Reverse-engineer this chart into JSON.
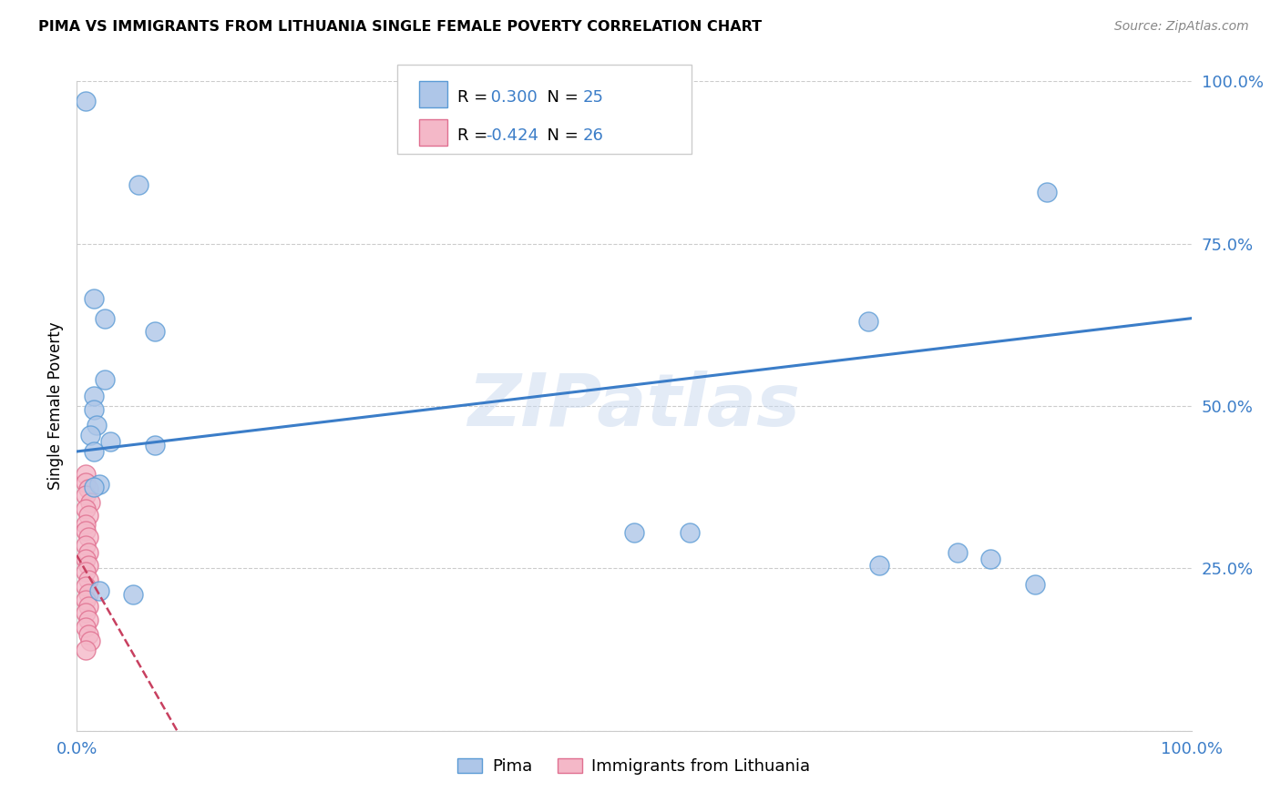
{
  "title": "PIMA VS IMMIGRANTS FROM LITHUANIA SINGLE FEMALE POVERTY CORRELATION CHART",
  "source": "Source: ZipAtlas.com",
  "ylabel": "Single Female Poverty",
  "watermark": "ZIPatlas",
  "xlim": [
    0.0,
    1.0
  ],
  "ylim": [
    0.0,
    1.0
  ],
  "xtick_positions": [
    0.0,
    0.2,
    0.4,
    0.6,
    0.8,
    1.0
  ],
  "xtick_labels": [
    "0.0%",
    "",
    "",
    "",
    "",
    "100.0%"
  ],
  "ytick_positions": [
    0.0,
    0.25,
    0.5,
    0.75,
    1.0
  ],
  "ytick_labels": [
    "",
    "25.0%",
    "50.0%",
    "75.0%",
    "100.0%"
  ],
  "pima_R": 0.3,
  "pima_N": 25,
  "lithuania_R": -0.424,
  "lithuania_N": 26,
  "pima_color": "#aec6e8",
  "pima_edge_color": "#5b9bd5",
  "lithuania_color": "#f4b8c8",
  "lithuania_edge_color": "#e07090",
  "trendline_pima_color": "#3b7dc8",
  "trendline_lithuania_color": "#c84060",
  "blue_text_color": "#3b7dc8",
  "pima_scatter": [
    [
      0.008,
      0.97
    ],
    [
      0.055,
      0.84
    ],
    [
      0.87,
      0.83
    ],
    [
      0.015,
      0.665
    ],
    [
      0.025,
      0.635
    ],
    [
      0.07,
      0.615
    ],
    [
      0.025,
      0.54
    ],
    [
      0.015,
      0.515
    ],
    [
      0.015,
      0.495
    ],
    [
      0.018,
      0.47
    ],
    [
      0.012,
      0.455
    ],
    [
      0.03,
      0.445
    ],
    [
      0.07,
      0.44
    ],
    [
      0.015,
      0.43
    ],
    [
      0.02,
      0.38
    ],
    [
      0.015,
      0.375
    ],
    [
      0.55,
      0.305
    ],
    [
      0.79,
      0.275
    ],
    [
      0.82,
      0.265
    ],
    [
      0.72,
      0.255
    ],
    [
      0.86,
      0.225
    ],
    [
      0.02,
      0.215
    ],
    [
      0.05,
      0.21
    ],
    [
      0.71,
      0.63
    ],
    [
      0.5,
      0.305
    ]
  ],
  "lithuania_scatter": [
    [
      0.008,
      0.395
    ],
    [
      0.008,
      0.382
    ],
    [
      0.01,
      0.372
    ],
    [
      0.008,
      0.362
    ],
    [
      0.012,
      0.352
    ],
    [
      0.008,
      0.342
    ],
    [
      0.01,
      0.332
    ],
    [
      0.008,
      0.318
    ],
    [
      0.008,
      0.308
    ],
    [
      0.01,
      0.298
    ],
    [
      0.008,
      0.285
    ],
    [
      0.01,
      0.275
    ],
    [
      0.008,
      0.265
    ],
    [
      0.01,
      0.255
    ],
    [
      0.008,
      0.245
    ],
    [
      0.01,
      0.232
    ],
    [
      0.008,
      0.222
    ],
    [
      0.01,
      0.212
    ],
    [
      0.008,
      0.202
    ],
    [
      0.01,
      0.192
    ],
    [
      0.008,
      0.182
    ],
    [
      0.01,
      0.17
    ],
    [
      0.008,
      0.16
    ],
    [
      0.01,
      0.148
    ],
    [
      0.012,
      0.138
    ],
    [
      0.008,
      0.125
    ]
  ]
}
